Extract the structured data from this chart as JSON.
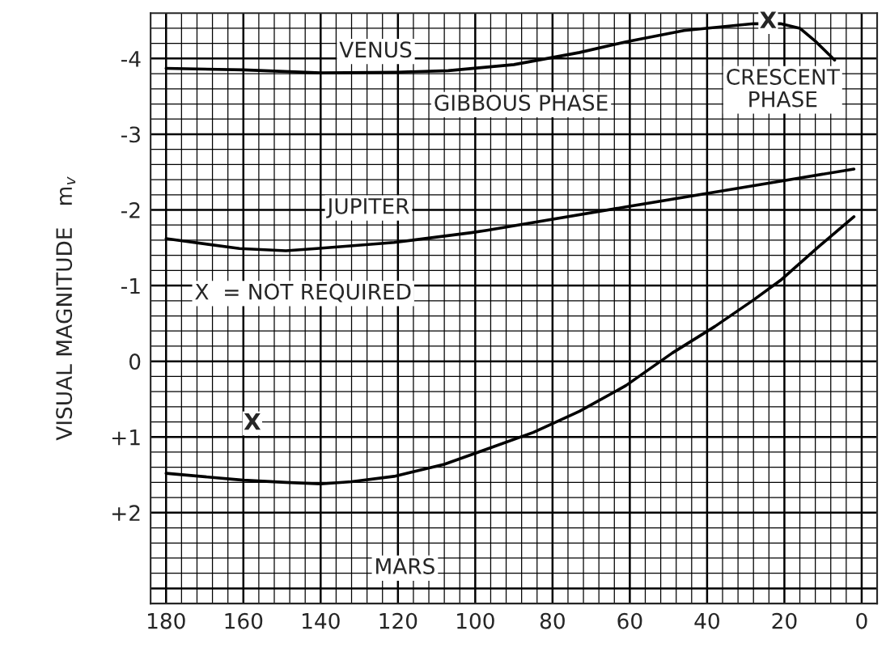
{
  "chart_data": {
    "type": "line",
    "ylabel": "VISUAL MAGNITUDE   m$_{v}$",
    "xlim": [
      184,
      -4
    ],
    "ylim": [
      3.2,
      -4.6
    ],
    "xticks": [
      180,
      160,
      140,
      120,
      100,
      80,
      60,
      40,
      20,
      {
        "value": 0,
        "label": "0"
      }
    ],
    "yticks": [
      -4,
      -3,
      -2,
      -1,
      0,
      {
        "value": 1,
        "label": "+1"
      },
      {
        "value": 2,
        "label": "+2"
      }
    ],
    "grid": true,
    "marker": "none",
    "line_style": "solid",
    "series": [
      {
        "color": "#000000",
        "x": [
          180,
          160,
          140,
          120,
          107,
          90,
          73,
          61,
          46,
          28,
          21,
          16,
          12,
          7
        ],
        "values": [
          -3.87,
          -3.85,
          -3.81,
          -3.82,
          -3.84,
          -3.92,
          -4.08,
          -4.22,
          -4.37,
          -4.46,
          -4.46,
          -4.4,
          -4.23,
          -3.98
        ]
      },
      {
        "color": "#000000",
        "x": [
          180,
          161,
          149,
          141,
          121,
          101,
          97,
          61,
          21,
          2
        ],
        "values": [
          -1.62,
          -1.49,
          -1.46,
          -1.49,
          -1.57,
          -1.7,
          -1.73,
          -2.04,
          -2.38,
          -2.54
        ]
      },
      {
        "color": "#000000",
        "x": [
          180,
          160,
          149,
          140,
          132,
          121,
          108,
          97,
          85,
          73,
          61,
          49,
          38,
          28,
          21,
          11,
          2
        ],
        "values": [
          1.48,
          1.57,
          1.6,
          1.62,
          1.59,
          1.52,
          1.36,
          1.16,
          0.94,
          0.66,
          0.32,
          -0.11,
          -0.46,
          -0.81,
          -1.07,
          -1.52,
          -1.91
        ]
      }
    ],
    "annotations": [
      "VENUS",
      "GIBBOUS PHASE",
      "CRESCENT\nPHASE",
      "JUPITER",
      "X  = NOT REQUIRED",
      "MARS",
      "X",
      "X"
    ]
  }
}
